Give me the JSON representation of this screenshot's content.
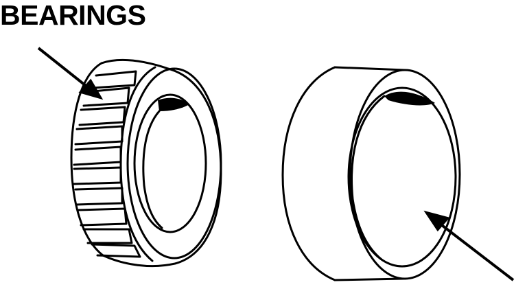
{
  "title": "BEARINGS",
  "colors": {
    "ink": "#000000",
    "paper": "#ffffff"
  },
  "figures": [
    {
      "name": "tapered-roller-bearing-cone"
    },
    {
      "name": "bearing-cup-race"
    }
  ]
}
